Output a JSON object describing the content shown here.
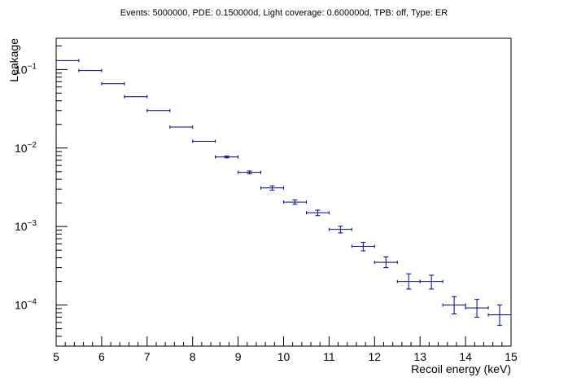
{
  "chart_data": {
    "type": "scatter",
    "title": "Events: 5000000, PDE: 0.150000d, Light coverage: 0.600000d, TPB: off, Type: ER",
    "xlabel": "Recoil energy (keV)",
    "ylabel": "Leakage",
    "xlim": [
      5,
      15
    ],
    "ylim": [
      3e-05,
      0.25
    ],
    "yscale": "log",
    "grid": false,
    "x_ticks": [
      "5",
      "6",
      "7",
      "8",
      "9",
      "10",
      "11",
      "12",
      "13",
      "14",
      "15"
    ],
    "y_ticks": [
      {
        "value": 0.1,
        "base": "10",
        "exp": "−1"
      },
      {
        "value": 0.01,
        "base": "10",
        "exp": "−2"
      },
      {
        "value": 0.001,
        "base": "10",
        "exp": "−3"
      },
      {
        "value": 0.0001,
        "base": "10",
        "exp": "−4"
      }
    ],
    "marker_color": "#000080",
    "series": [
      {
        "points": [
          {
            "x": 5.25,
            "y": 0.13,
            "ylo": 0.13,
            "yhi": 0.13
          },
          {
            "x": 5.75,
            "y": 0.097,
            "ylo": 0.097,
            "yhi": 0.097
          },
          {
            "x": 6.25,
            "y": 0.066,
            "ylo": 0.0655,
            "yhi": 0.0665
          },
          {
            "x": 6.75,
            "y": 0.045,
            "ylo": 0.0447,
            "yhi": 0.0453
          },
          {
            "x": 7.25,
            "y": 0.03,
            "ylo": 0.0297,
            "yhi": 0.0303
          },
          {
            "x": 7.75,
            "y": 0.0185,
            "ylo": 0.0183,
            "yhi": 0.0187
          },
          {
            "x": 8.25,
            "y": 0.0122,
            "ylo": 0.012,
            "yhi": 0.0124
          },
          {
            "x": 8.75,
            "y": 0.0077,
            "ylo": 0.0075,
            "yhi": 0.0079
          },
          {
            "x": 9.25,
            "y": 0.0049,
            "ylo": 0.0047,
            "yhi": 0.0051
          },
          {
            "x": 9.75,
            "y": 0.0031,
            "ylo": 0.0029,
            "yhi": 0.0033
          },
          {
            "x": 10.25,
            "y": 0.00205,
            "ylo": 0.00192,
            "yhi": 0.00218
          },
          {
            "x": 10.75,
            "y": 0.0015,
            "ylo": 0.00138,
            "yhi": 0.00162
          },
          {
            "x": 11.25,
            "y": 0.00092,
            "ylo": 0.00083,
            "yhi": 0.00101
          },
          {
            "x": 11.75,
            "y": 0.00056,
            "ylo": 0.00049,
            "yhi": 0.00063
          },
          {
            "x": 12.25,
            "y": 0.00035,
            "ylo": 0.0003,
            "yhi": 0.00041
          },
          {
            "x": 12.75,
            "y": 0.0002,
            "ylo": 0.00016,
            "yhi": 0.00025
          },
          {
            "x": 13.25,
            "y": 0.0002,
            "ylo": 0.00016,
            "yhi": 0.00024
          },
          {
            "x": 13.75,
            "y": 0.0001,
            "ylo": 7.7e-05,
            "yhi": 0.000128
          },
          {
            "x": 14.25,
            "y": 9.2e-05,
            "ylo": 7e-05,
            "yhi": 0.000118
          },
          {
            "x": 14.75,
            "y": 7.5e-05,
            "ylo": 5.5e-05,
            "yhi": 0.0001
          }
        ],
        "bin_half_width": 0.25
      }
    ]
  }
}
